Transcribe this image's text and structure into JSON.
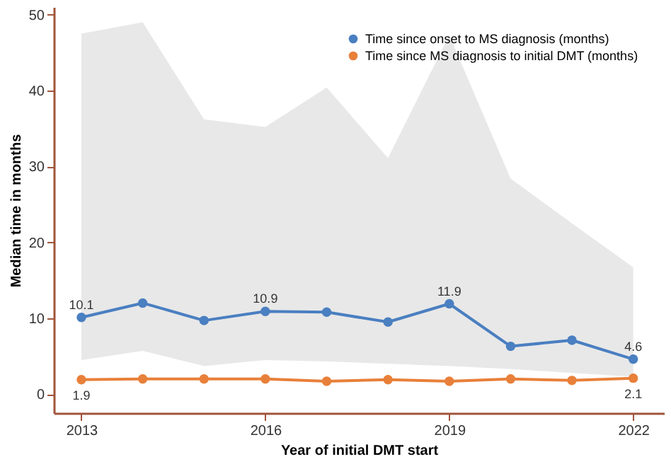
{
  "chart_data": {
    "type": "line",
    "xlabel": "Year of initial DMT start",
    "ylabel": "Median time in months",
    "x": [
      2013,
      2014,
      2015,
      2016,
      2017,
      2018,
      2019,
      2020,
      2021,
      2022
    ],
    "xlim": [
      2012.55,
      2022.5
    ],
    "xticks": [
      2013,
      2016,
      2019,
      2022
    ],
    "ylim": [
      -2.5,
      51
    ],
    "yticks": [
      0,
      10,
      20,
      30,
      40,
      50
    ],
    "series": [
      {
        "name": "Time since onset to MS diagnosis (months)",
        "color": "#4a7fc1",
        "values": [
          10.1,
          12.0,
          9.7,
          10.9,
          10.8,
          9.5,
          11.9,
          6.3,
          7.1,
          4.6
        ],
        "value_labels": [
          "10.1",
          null,
          null,
          "10.9",
          null,
          null,
          "11.9",
          null,
          null,
          "4.6"
        ],
        "lower": [
          4.5,
          5.7,
          3.7,
          4.5,
          4.3,
          4.0,
          3.7,
          3.3,
          2.8,
          2.3
        ],
        "upper": [
          47.5,
          49.0,
          36.2,
          35.2,
          40.4,
          31.1,
          47.3,
          28.4,
          22.5,
          16.7
        ]
      },
      {
        "name": "Time since MS diagnosis to initial DMT (months)",
        "color": "#e8803a",
        "values": [
          1.9,
          2.0,
          2.0,
          2.0,
          1.7,
          1.9,
          1.7,
          2.0,
          1.8,
          2.1
        ],
        "value_labels": [
          "1.9",
          null,
          null,
          null,
          null,
          null,
          null,
          null,
          null,
          "2.1"
        ]
      }
    ],
    "marker": "circle",
    "line_style": "solid",
    "grid": false,
    "legend": "top right"
  }
}
